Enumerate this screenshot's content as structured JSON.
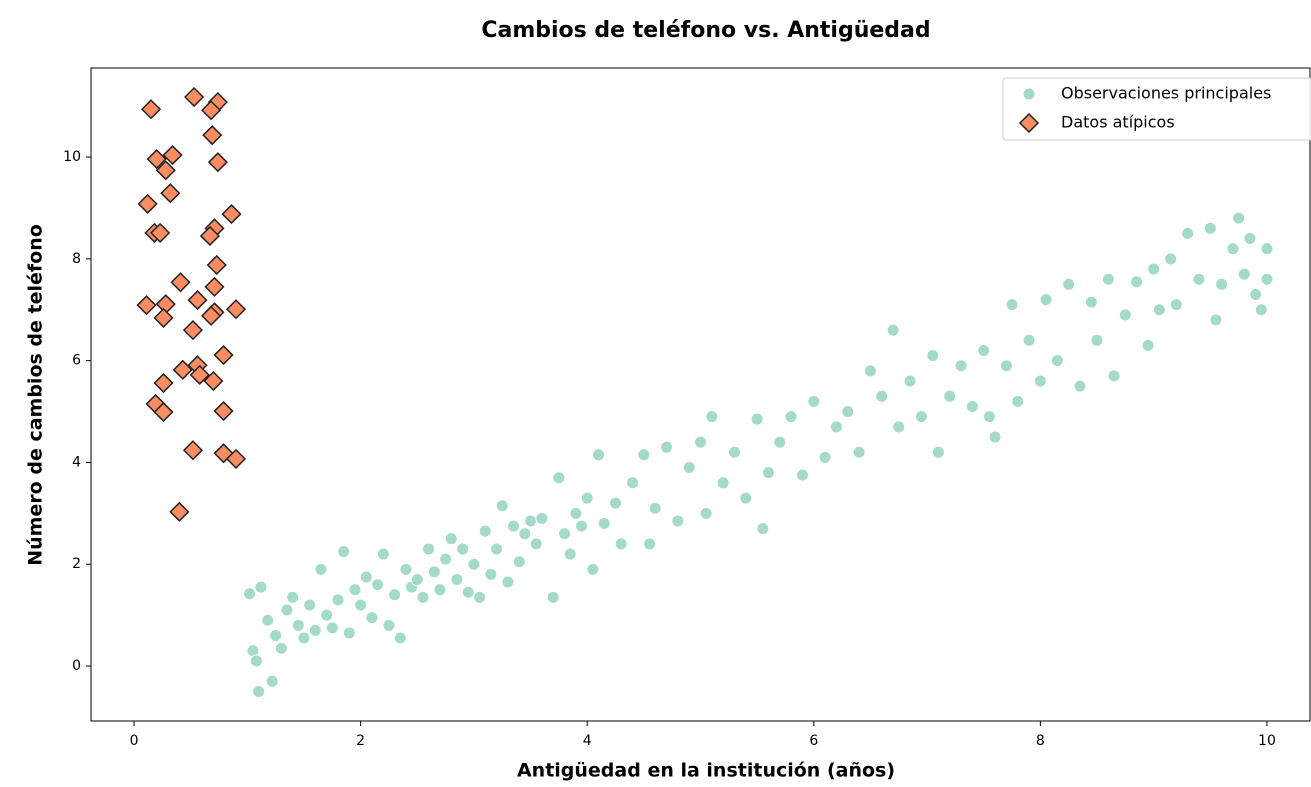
{
  "chart_data": {
    "type": "scatter",
    "title": "Cambios de teléfono vs. Antigüedad",
    "x_label": "Antigüedad en la institución (años)",
    "y_label": "Número de cambios de teléfono",
    "xlim": [
      -0.38,
      10.38
    ],
    "ylim": [
      -1.08,
      11.75
    ],
    "xticks": [
      0,
      2,
      4,
      6,
      8,
      10
    ],
    "yticks": [
      0,
      2,
      4,
      6,
      8,
      10
    ],
    "grid": false,
    "legend": "upper right",
    "series": [
      {
        "name": "Observaciones principales",
        "color": "#66c2a5",
        "marker": "circle",
        "x": [
          1.02,
          1.05,
          1.08,
          1.1,
          1.12,
          1.18,
          1.22,
          1.25,
          1.3,
          1.35,
          1.4,
          1.45,
          1.5,
          1.55,
          1.6,
          1.65,
          1.7,
          1.75,
          1.8,
          1.85,
          1.9,
          1.95,
          2.0,
          2.05,
          2.1,
          2.15,
          2.2,
          2.25,
          2.3,
          2.35,
          2.4,
          2.45,
          2.5,
          2.55,
          2.6,
          2.65,
          2.7,
          2.75,
          2.8,
          2.85,
          2.9,
          2.95,
          3.0,
          3.05,
          3.1,
          3.15,
          3.2,
          3.25,
          3.3,
          3.35,
          3.4,
          3.45,
          3.5,
          3.55,
          3.6,
          3.7,
          3.75,
          3.8,
          3.85,
          3.9,
          3.95,
          4.0,
          4.05,
          4.1,
          4.15,
          4.25,
          4.3,
          4.4,
          4.5,
          4.55,
          4.6,
          4.7,
          4.8,
          4.9,
          5.0,
          5.05,
          5.1,
          5.2,
          5.3,
          5.4,
          5.5,
          5.55,
          5.6,
          5.7,
          5.8,
          5.9,
          6.0,
          6.1,
          6.2,
          6.3,
          6.4,
          6.5,
          6.6,
          6.7,
          6.75,
          6.85,
          6.95,
          7.05,
          7.1,
          7.2,
          7.3,
          7.4,
          7.5,
          7.55,
          7.6,
          7.7,
          7.75,
          7.8,
          7.9,
          8.0,
          8.05,
          8.15,
          8.25,
          8.35,
          8.45,
          8.5,
          8.6,
          8.65,
          8.75,
          8.85,
          8.95,
          9.0,
          9.05,
          9.15,
          9.2,
          9.3,
          9.4,
          9.5,
          9.55,
          9.6,
          9.7,
          9.75,
          9.8,
          9.85,
          9.9,
          9.95,
          10.0,
          10.0
        ],
        "values": [
          1.42,
          0.3,
          0.1,
          -0.5,
          1.55,
          0.9,
          -0.3,
          0.6,
          0.35,
          1.1,
          1.35,
          0.8,
          0.55,
          1.2,
          0.7,
          1.9,
          1.0,
          0.75,
          1.3,
          2.25,
          0.65,
          1.5,
          1.2,
          1.75,
          0.95,
          1.6,
          2.2,
          0.8,
          1.4,
          0.55,
          1.9,
          1.55,
          1.7,
          1.35,
          2.3,
          1.85,
          1.5,
          2.1,
          2.5,
          1.7,
          2.3,
          1.45,
          2.0,
          1.35,
          2.65,
          1.8,
          2.3,
          3.15,
          1.65,
          2.75,
          2.05,
          2.6,
          2.85,
          2.4,
          2.9,
          1.35,
          3.7,
          2.6,
          2.2,
          3.0,
          2.75,
          3.3,
          1.9,
          4.15,
          2.8,
          3.2,
          2.4,
          3.6,
          4.15,
          2.4,
          3.1,
          4.3,
          2.85,
          3.9,
          4.4,
          3.0,
          4.9,
          3.6,
          4.2,
          3.3,
          4.85,
          2.7,
          3.8,
          4.4,
          4.9,
          3.75,
          5.2,
          4.1,
          4.7,
          5.0,
          4.2,
          5.8,
          5.3,
          6.6,
          4.7,
          5.6,
          4.9,
          6.1,
          4.2,
          5.3,
          5.9,
          5.1,
          6.2,
          4.9,
          4.5,
          5.9,
          7.1,
          5.2,
          6.4,
          5.6,
          7.2,
          6.0,
          7.5,
          5.5,
          7.15,
          6.4,
          7.6,
          5.7,
          6.9,
          7.55,
          6.3,
          7.8,
          7.0,
          8.0,
          7.1,
          8.5,
          7.6,
          8.6,
          6.8,
          7.5,
          8.2,
          8.8,
          7.7,
          8.4,
          7.3,
          7.0,
          8.2,
          7.6
        ]
      },
      {
        "name": "Datos atípicos",
        "color": "#fc8d62",
        "marker": "diamond",
        "x": [
          0.15,
          0.2,
          0.34,
          0.28,
          0.53,
          0.74,
          0.68,
          0.69,
          0.74,
          0.32,
          0.12,
          0.18,
          0.23,
          0.86,
          0.71,
          0.67,
          0.73,
          0.41,
          0.71,
          0.11,
          0.28,
          0.56,
          0.9,
          0.71,
          0.68,
          0.26,
          0.52,
          0.79,
          0.56,
          0.43,
          0.58,
          0.7,
          0.26,
          0.19,
          0.26,
          0.79,
          0.52,
          0.79,
          0.9,
          0.4
        ],
        "values": [
          10.94,
          9.96,
          10.04,
          9.74,
          11.18,
          11.08,
          10.92,
          10.43,
          9.9,
          9.29,
          9.08,
          8.51,
          8.51,
          8.88,
          8.6,
          8.45,
          7.88,
          7.54,
          7.45,
          7.09,
          7.11,
          7.19,
          7.01,
          6.95,
          6.88,
          6.84,
          6.6,
          6.11,
          5.91,
          5.82,
          5.72,
          5.6,
          5.56,
          5.15,
          4.99,
          5.01,
          4.24,
          4.18,
          4.07,
          3.03
        ]
      }
    ]
  }
}
